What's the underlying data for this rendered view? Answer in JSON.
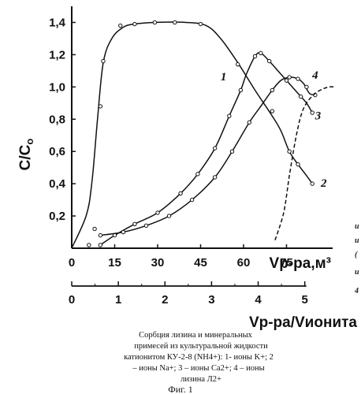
{
  "chart_data": {
    "type": "line",
    "ylabel": "C/C",
    "ylabel_sub": "o",
    "xlabel_top": "Vр-ра,м³",
    "xlabel_bottom": "Vр-ра/Vионита",
    "xlim": [
      0,
      90
    ],
    "ylim": [
      0,
      1.5
    ],
    "x_ticks": [
      "0",
      "15",
      "30",
      "45",
      "60",
      "75"
    ],
    "x_tick_values": [
      0,
      15,
      30,
      45,
      60,
      75
    ],
    "y_ticks": [
      "0,2",
      "0,4",
      "0,6",
      "0,8",
      "1,0",
      "1,2",
      "1,4"
    ],
    "y_tick_values": [
      0.2,
      0.4,
      0.6,
      0.8,
      1.0,
      1.2,
      1.4
    ],
    "x2_ticks": [
      "0",
      "1",
      "2",
      "3",
      "4",
      "5"
    ],
    "x2_tick_values": [
      0,
      1,
      2,
      3,
      4,
      5
    ],
    "x2_lim": [
      0,
      5.53
    ],
    "series": [
      {
        "name": "2",
        "dashed": false,
        "points": [
          [
            0,
            0
          ],
          [
            5,
            0.2
          ],
          [
            7,
            0.4
          ],
          [
            9,
            0.8
          ],
          [
            11,
            1.15
          ],
          [
            14,
            1.3
          ],
          [
            18,
            1.37
          ],
          [
            22,
            1.39
          ],
          [
            29,
            1.4
          ],
          [
            40,
            1.4
          ],
          [
            47,
            1.38
          ],
          [
            52,
            1.3
          ],
          [
            58,
            1.15
          ],
          [
            64,
            0.98
          ],
          [
            70,
            0.82
          ],
          [
            73,
            0.73
          ],
          [
            76,
            0.6
          ],
          [
            79,
            0.52
          ],
          [
            82,
            0.45
          ],
          [
            84,
            0.4
          ]
        ],
        "markers": [
          [
            6,
            0.02
          ],
          [
            8,
            0.12
          ],
          [
            10,
            0.88
          ],
          [
            11,
            1.16
          ],
          [
            17,
            1.38
          ],
          [
            22,
            1.39
          ],
          [
            29,
            1.4
          ],
          [
            36,
            1.4
          ],
          [
            45,
            1.39
          ],
          [
            58,
            1.14
          ],
          [
            70,
            0.85
          ],
          [
            76,
            0.6
          ],
          [
            79,
            0.52
          ],
          [
            84,
            0.4
          ]
        ]
      },
      {
        "name": "1",
        "dashed": false,
        "points": [
          [
            10,
            0.02
          ],
          [
            15,
            0.08
          ],
          [
            22,
            0.15
          ],
          [
            30,
            0.22
          ],
          [
            38,
            0.34
          ],
          [
            44,
            0.46
          ],
          [
            50,
            0.62
          ],
          [
            55,
            0.82
          ],
          [
            59,
            0.98
          ],
          [
            61,
            1.08
          ],
          [
            64,
            1.19
          ],
          [
            66,
            1.21
          ],
          [
            69,
            1.16
          ],
          [
            72,
            1.1
          ],
          [
            75,
            1.04
          ],
          [
            78,
            0.98
          ],
          [
            80,
            0.94
          ],
          [
            82,
            0.9
          ],
          [
            84,
            0.84
          ]
        ],
        "markers": [
          [
            10,
            0.02
          ],
          [
            15,
            0.08
          ],
          [
            22,
            0.15
          ],
          [
            30,
            0.22
          ],
          [
            38,
            0.34
          ],
          [
            44,
            0.46
          ],
          [
            50,
            0.62
          ],
          [
            55,
            0.82
          ],
          [
            59,
            0.98
          ],
          [
            64,
            1.19
          ],
          [
            66,
            1.21
          ],
          [
            69,
            1.16
          ],
          [
            75,
            1.04
          ],
          [
            80,
            0.94
          ],
          [
            84,
            0.84
          ]
        ]
      },
      {
        "name": "3",
        "dashed": false,
        "points": [
          [
            10,
            0.08
          ],
          [
            18,
            0.1
          ],
          [
            26,
            0.14
          ],
          [
            34,
            0.2
          ],
          [
            42,
            0.3
          ],
          [
            50,
            0.44
          ],
          [
            56,
            0.6
          ],
          [
            62,
            0.78
          ],
          [
            66,
            0.88
          ],
          [
            70,
            0.98
          ],
          [
            73,
            1.04
          ],
          [
            76,
            1.06
          ],
          [
            79,
            1.05
          ],
          [
            81,
            1.02
          ],
          [
            83,
            0.96
          ],
          [
            85,
            0.95
          ]
        ],
        "markers": [
          [
            10,
            0.08
          ],
          [
            18,
            0.1
          ],
          [
            26,
            0.14
          ],
          [
            34,
            0.2
          ],
          [
            42,
            0.3
          ],
          [
            50,
            0.44
          ],
          [
            56,
            0.6
          ],
          [
            62,
            0.78
          ],
          [
            70,
            0.98
          ],
          [
            76,
            1.06
          ],
          [
            79,
            1.05
          ],
          [
            82,
            1.0
          ],
          [
            85,
            0.95
          ]
        ]
      },
      {
        "name": "4",
        "dashed": true,
        "points": [
          [
            71,
            0.05
          ],
          [
            74,
            0.22
          ],
          [
            76,
            0.45
          ],
          [
            78,
            0.66
          ],
          [
            80,
            0.82
          ],
          [
            82,
            0.9
          ],
          [
            85,
            0.96
          ],
          [
            88,
            0.99
          ],
          [
            90,
            1.0
          ],
          [
            92,
            1.0
          ]
        ],
        "markers": []
      }
    ],
    "curve_labels": [
      {
        "text": "1",
        "x": 53,
        "y": 1.04
      },
      {
        "text": "2",
        "x": 88,
        "y": 0.38
      },
      {
        "text": "3",
        "x": 86,
        "y": 0.8
      },
      {
        "text": "4",
        "x": 85,
        "y": 1.05
      }
    ]
  },
  "caption": {
    "lines": [
      "Сорбция лизина и минеральных",
      "примесей из культуральной жидкости",
      "катионитом КУ-2-8 (NH4+): 1- ионы K+; 2",
      "– ионы Na+; 3 – ионы Ca2+; 4 – ионы",
      "лизина Л2+"
    ],
    "figure": "Фиг. 1"
  },
  "edge_marks": [
    "и",
    "и",
    "(",
    "и",
    "4"
  ]
}
